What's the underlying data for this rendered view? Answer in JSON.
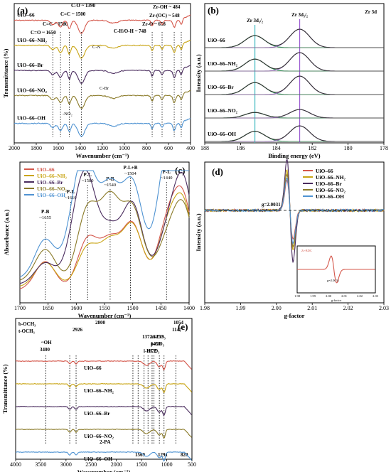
{
  "colors": {
    "UiO-66": "#d4574b",
    "UiO-66-NH2": "#c9a515",
    "UiO-66-Br": "#4a2c5e",
    "UiO-66-NO2": "#8a7a28",
    "UiO-66-OH": "#4f93d2",
    "zr_green": "#2a9a55",
    "zr_fit_purple": "#a070c8",
    "zr_line_cyan": "#3fb9c0",
    "zr_line_purple": "#9a5ad0"
  },
  "chart_data": [
    {
      "panel": "(a)",
      "type": "line",
      "xlabel": "Wavenumber (cm⁻¹)",
      "ylabel": "Transmittance (%)",
      "xlim": [
        2000,
        400
      ],
      "xticks": [
        "2000",
        "1800",
        "1600",
        "1400",
        "1200",
        "1000",
        "800",
        "600",
        "400"
      ],
      "series": [
        {
          "name": "UiO–66",
          "offset": 0.9
        },
        {
          "name": "UiO–66–NH₂",
          "offset": 0.72
        },
        {
          "name": "UiO–66–Br",
          "offset": 0.54
        },
        {
          "name": "UiO–66–NO₂",
          "offset": 0.36
        },
        {
          "name": "UiO–66–OH",
          "offset": 0.16
        }
      ],
      "peaks": [
        1650,
        1580,
        1500,
        1390,
        748,
        658,
        548,
        484
      ],
      "annotations": [
        {
          "text": "C=O ~ 1650"
        },
        {
          "text": "C=C ~ 1580"
        },
        {
          "text": "C=C ~ 1500"
        },
        {
          "text": "C-O ~ 1390"
        },
        {
          "text": "C-H/O-H ~ 748"
        },
        {
          "text": "Zr-O ~ 658"
        },
        {
          "text": "Zr-(OC) ~ 548"
        },
        {
          "text": "Zr-OH ~ 484"
        },
        {
          "text": "C-N"
        },
        {
          "text": "C-Br"
        },
        {
          "text": "-NO₂"
        }
      ]
    },
    {
      "panel": "(b)",
      "type": "line",
      "title": "Zr 3d",
      "xlabel": "Binding energy (eV)",
      "ylabel": "Intensity (a.u.)",
      "xlim": [
        188,
        178
      ],
      "xticks": [
        "188",
        "186",
        "184",
        "182",
        "180",
        "178"
      ],
      "peak_labels": [
        "Zr 3d₃/₂",
        "Zr 3d₅/₂"
      ],
      "peak_positions": [
        185.2,
        182.7
      ],
      "series": [
        {
          "name": "UiO–66"
        },
        {
          "name": "UiO–66–NH₂"
        },
        {
          "name": "UiO–66–Br"
        },
        {
          "name": "UiO–66–NO₂"
        },
        {
          "name": "UiO–66–OH"
        }
      ]
    },
    {
      "panel": "(c)",
      "type": "line",
      "xlabel": "Wavenumber (cm⁻¹)",
      "ylabel": "Absorbance (a.u.)",
      "xlim": [
        1700,
        1400
      ],
      "xticks": [
        "1700",
        "1650",
        "1600",
        "1550",
        "1500",
        "1450",
        "1400"
      ],
      "legend": [
        "UiO–66",
        "UiO–66–NH₂",
        "UiO–66–Br",
        "UiO–66–NO₂",
        "UiO–66–OH"
      ],
      "peaks": [
        {
          "label": "P-B",
          "sub": "~1655",
          "x": 1655
        },
        {
          "label": "P-L",
          "sub": "~1610",
          "x": 1610
        },
        {
          "label": "P-L",
          "sub": "~1580",
          "x": 1580
        },
        {
          "label": "P-B",
          "sub": "~1540",
          "x": 1540
        },
        {
          "label": "P-L+B",
          "sub": "~1504",
          "x": 1504
        },
        {
          "label": "P-L",
          "sub": "~1440",
          "x": 1440
        }
      ]
    },
    {
      "panel": "(d)",
      "type": "line",
      "xlabel": "g-factor",
      "ylabel": "Intensity (a.u.)",
      "xlim": [
        1.98,
        2.03
      ],
      "xticks": [
        "1.98",
        "1.99",
        "2.00",
        "2.01",
        "2.02",
        "2.03"
      ],
      "annotation": "g=2.0031",
      "legend": [
        "UiO–66",
        "UiO–66–NH₂",
        "UiO–66–Br",
        "UiO–66–NO₂",
        "UiO–66–OH"
      ],
      "inset": {
        "xticks": [
          "1.98",
          "1.99",
          "2.00",
          "2.01",
          "2.02",
          "2.03"
        ],
        "xlabel": "g-factor",
        "ylabel": "Intensity (a.u.)",
        "legend": "Zr-BDC",
        "annotation": "g=2.0031"
      }
    },
    {
      "panel": "(e)",
      "type": "line",
      "xlabel": "Wavenumber (cm⁻¹)",
      "ylabel": "Transmittance (%)",
      "xlim": [
        4000,
        500
      ],
      "xticks": [
        "4000",
        "3500",
        "3000",
        "2500",
        "2000",
        "1500",
        "1000",
        "500"
      ],
      "series": [
        {
          "name": "UiO–66"
        },
        {
          "name": "UiO–66–NH₂"
        },
        {
          "name": "UiO–66–Br"
        },
        {
          "name": "UiO–66–NO₂"
        },
        {
          "name": "UiO–66–OH"
        },
        {
          "name": "2-PA"
        }
      ],
      "annotations": [
        {
          "text": "b-OCH₃"
        },
        {
          "text": "t-OCH₃"
        },
        {
          "text": "2800"
        },
        {
          "text": "2926"
        },
        {
          "text": "~OH"
        },
        {
          "text": "3400"
        },
        {
          "text": "1054"
        },
        {
          "text": "1147"
        },
        {
          "text": "m-CO₃"
        },
        {
          "text": "1372/1253"
        },
        {
          "text": "p-CO₃"
        },
        {
          "text": "1450"
        },
        {
          "text": "i-HCO₃"
        },
        {
          "text": "1672"
        },
        {
          "text": "1569"
        },
        {
          "text": "1291"
        },
        {
          "text": "820"
        }
      ]
    }
  ]
}
